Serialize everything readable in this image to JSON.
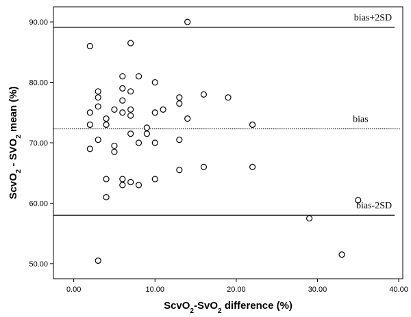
{
  "chart_data": {
    "type": "scatter",
    "title": "",
    "xlabel": {
      "pre": "ScvO",
      "sub1": "2",
      "mid": "-SvO",
      "sub2": "2",
      "post": " difference (%)"
    },
    "ylabel": {
      "pre": "ScvO",
      "sub1": "2",
      "mid": " - SVO",
      "sub2": "2",
      "post": " mean (%)"
    },
    "xlim": [
      -2.5,
      40.5
    ],
    "ylim": [
      47.5,
      92.5
    ],
    "x_ticks": [
      0,
      10,
      20,
      30,
      40
    ],
    "y_ticks": [
      50,
      60,
      70,
      80,
      90
    ],
    "x_tick_labels": [
      "0.00",
      "10.00",
      "20.00",
      "30.00",
      "40.00"
    ],
    "y_tick_labels": [
      "50.00",
      "60.00",
      "70.00",
      "80.00",
      "90.00"
    ],
    "grid": false,
    "reference_lines": [
      {
        "label": "bias+2SD",
        "y": 89.1,
        "style": "solid",
        "x_end": 39.5
      },
      {
        "label": "bias",
        "y": 72.3,
        "style": "dotted",
        "x_end": 40.2
      },
      {
        "label": "bias-2SD",
        "y": 58.0,
        "style": "solid",
        "x_end": 39.5
      }
    ],
    "points": [
      {
        "x": 2,
        "y": 86
      },
      {
        "x": 2,
        "y": 75
      },
      {
        "x": 2,
        "y": 73
      },
      {
        "x": 2,
        "y": 69
      },
      {
        "x": 3,
        "y": 78.5
      },
      {
        "x": 3,
        "y": 77.5
      },
      {
        "x": 3,
        "y": 76
      },
      {
        "x": 3,
        "y": 70.5
      },
      {
        "x": 3,
        "y": 50.5
      },
      {
        "x": 4,
        "y": 74
      },
      {
        "x": 4,
        "y": 73
      },
      {
        "x": 4,
        "y": 64
      },
      {
        "x": 4,
        "y": 61
      },
      {
        "x": 5,
        "y": 75.5
      },
      {
        "x": 5,
        "y": 69.5
      },
      {
        "x": 5,
        "y": 68.5
      },
      {
        "x": 6,
        "y": 81
      },
      {
        "x": 6,
        "y": 79
      },
      {
        "x": 6,
        "y": 77
      },
      {
        "x": 6,
        "y": 75
      },
      {
        "x": 6,
        "y": 64
      },
      {
        "x": 6,
        "y": 63
      },
      {
        "x": 7,
        "y": 86.5
      },
      {
        "x": 7,
        "y": 78.5
      },
      {
        "x": 7,
        "y": 75.5
      },
      {
        "x": 7,
        "y": 74.5
      },
      {
        "x": 7,
        "y": 71.5
      },
      {
        "x": 7,
        "y": 63.5
      },
      {
        "x": 8,
        "y": 81
      },
      {
        "x": 8,
        "y": 70
      },
      {
        "x": 8,
        "y": 63
      },
      {
        "x": 9,
        "y": 72.5
      },
      {
        "x": 9,
        "y": 71.5
      },
      {
        "x": 10,
        "y": 80
      },
      {
        "x": 10,
        "y": 75
      },
      {
        "x": 10,
        "y": 70
      },
      {
        "x": 10,
        "y": 64
      },
      {
        "x": 11,
        "y": 75.5
      },
      {
        "x": 13,
        "y": 77.5
      },
      {
        "x": 13,
        "y": 76.5
      },
      {
        "x": 13,
        "y": 70.5
      },
      {
        "x": 13,
        "y": 65.5
      },
      {
        "x": 14,
        "y": 90
      },
      {
        "x": 14,
        "y": 74
      },
      {
        "x": 16,
        "y": 78
      },
      {
        "x": 16,
        "y": 66
      },
      {
        "x": 19,
        "y": 77.5
      },
      {
        "x": 22,
        "y": 73
      },
      {
        "x": 22,
        "y": 66
      },
      {
        "x": 29,
        "y": 57.5
      },
      {
        "x": 33,
        "y": 51.5
      },
      {
        "x": 35,
        "y": 60.5
      }
    ]
  }
}
